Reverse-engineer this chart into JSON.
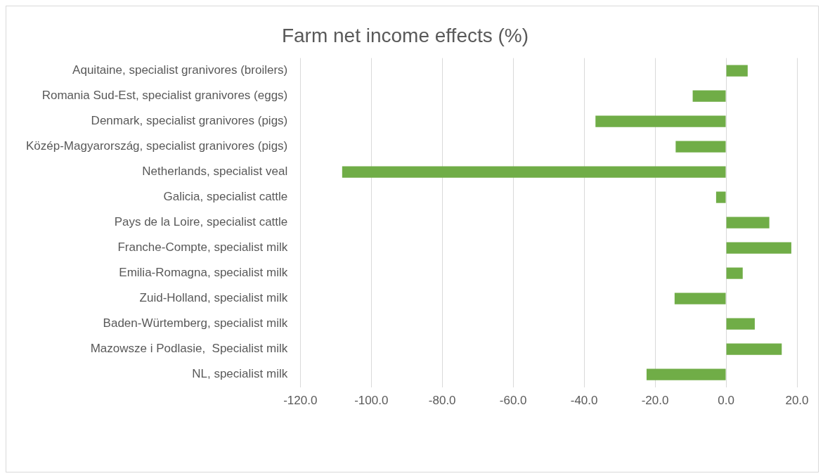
{
  "chart_data": {
    "type": "bar",
    "orientation": "horizontal",
    "title": "Farm net income effects (%)",
    "categories": [
      "Aquitaine, specialist granivores (broilers)",
      "Romania Sud-Est, specialist granivores (eggs)",
      "Denmark, specialist granivores (pigs)",
      "Közép-Magyarország, specialist granivores (pigs)",
      "Netherlands, specialist veal",
      "Galicia, specialist cattle",
      "Pays de la Loire, specialist cattle",
      "Franche-Compte, specialist milk",
      "Emilia-Romagna, specialist milk",
      "Zuid-Holland, specialist milk",
      "Baden-Würtemberg, specialist milk",
      "Mazowsze i Podlasie,  Specialist milk",
      "NL, specialist milk"
    ],
    "values": [
      6.1,
      -9.4,
      -36.8,
      -14.2,
      -108.2,
      -2.8,
      12.2,
      18.4,
      4.7,
      -14.5,
      8.1,
      15.7,
      -22.4
    ],
    "color": "#70ad47",
    "xlim": [
      -120,
      20
    ],
    "xticks": [
      {
        "value": -120,
        "label": "-120.0"
      },
      {
        "value": -100,
        "label": "-100.0"
      },
      {
        "value": -80,
        "label": "-80.0"
      },
      {
        "value": -60,
        "label": "-60.0"
      },
      {
        "value": -40,
        "label": "-40.0"
      },
      {
        "value": -20,
        "label": "-20.0"
      },
      {
        "value": 0,
        "label": "0.0"
      },
      {
        "value": 20,
        "label": "20.0"
      }
    ],
    "grid": "x",
    "legend": false
  }
}
